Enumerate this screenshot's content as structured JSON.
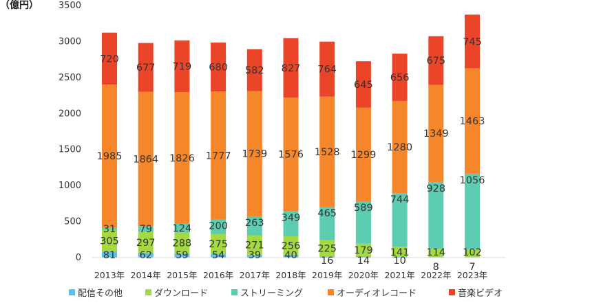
{
  "chart_data": {
    "type": "bar",
    "stacked": true,
    "unit_label": "（億円）",
    "categories": [
      "2013年",
      "2014年",
      "2015年",
      "2016年",
      "2017年",
      "2018年",
      "2019年",
      "2020年",
      "2021年",
      "2022年",
      "2023年"
    ],
    "series": [
      {
        "name": "配信その他",
        "color": "#5bc1e8",
        "values": [
          81,
          62,
          59,
          54,
          39,
          40,
          16,
          14,
          10,
          8,
          7
        ]
      },
      {
        "name": "ダウンロード",
        "color": "#a5d942",
        "values": [
          305,
          297,
          288,
          275,
          271,
          256,
          225,
          179,
          141,
          114,
          102
        ]
      },
      {
        "name": "ストリーミング",
        "color": "#5ccdb0",
        "values": [
          31,
          79,
          124,
          200,
          263,
          349,
          465,
          589,
          744,
          928,
          1056
        ]
      },
      {
        "name": "オーディオレコード",
        "color": "#f5862a",
        "values": [
          1985,
          1864,
          1826,
          1777,
          1739,
          1576,
          1528,
          1299,
          1280,
          1349,
          1463
        ]
      },
      {
        "name": "音楽ビデオ",
        "color": "#ea4429",
        "values": [
          720,
          677,
          719,
          680,
          582,
          827,
          764,
          645,
          656,
          675,
          745
        ]
      }
    ],
    "ylim": [
      0,
      3500
    ],
    "yticks": [
      0,
      500,
      1000,
      1500,
      2000,
      2500,
      3000,
      3500
    ],
    "grid": false,
    "legend": "bottom",
    "title": "",
    "xlabel": "",
    "ylabel": ""
  }
}
